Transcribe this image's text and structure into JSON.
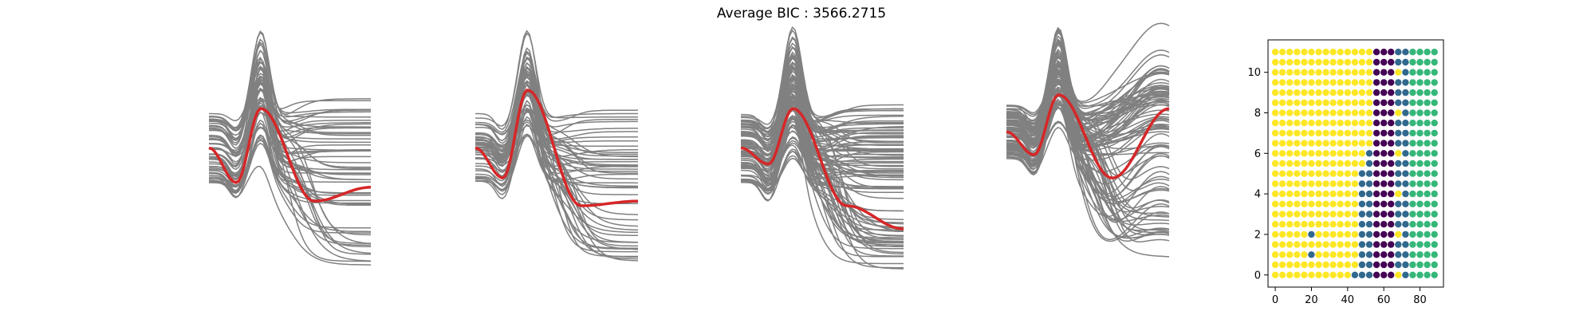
{
  "title": "Average BIC : 3566.2715",
  "colors": {
    "curve": "#808080",
    "mean": "#d62728",
    "cluster_colors": [
      "#440154",
      "#31688e",
      "#35b779",
      "#fde725"
    ]
  },
  "chart_data": [
    {
      "type": "line",
      "panel": 1,
      "axes_visible": false,
      "description_counts": {
        "gray_curves": 55
      },
      "series": [
        {
          "name": "",
          "role": "mean-curve",
          "values": [
            0.55,
            0.4,
            0.72,
            0.32,
            0.38
          ]
        }
      ]
    },
    {
      "type": "line",
      "panel": 2,
      "axes_visible": false,
      "description_counts": {
        "gray_curves": 50
      },
      "series": [
        {
          "name": "",
          "role": "mean-curve",
          "values": [
            0.55,
            0.42,
            0.8,
            0.3,
            0.32
          ]
        }
      ]
    },
    {
      "type": "line",
      "panel": 3,
      "axes_visible": false,
      "description_counts": {
        "gray_curves": 90
      },
      "series": [
        {
          "name": "",
          "role": "mean-curve",
          "values": [
            0.55,
            0.48,
            0.72,
            0.3,
            0.2
          ]
        }
      ]
    },
    {
      "type": "line",
      "panel": 4,
      "axes_visible": false,
      "description_counts": {
        "gray_curves": 90
      },
      "series": [
        {
          "name": "",
          "role": "mean-curve",
          "values": [
            0.62,
            0.52,
            0.78,
            0.42,
            0.72
          ]
        }
      ]
    },
    {
      "type": "scatter",
      "panel": 5,
      "x_ticks": [
        0,
        20,
        40,
        60,
        80
      ],
      "y_ticks": [
        0,
        2,
        4,
        6,
        8,
        10
      ],
      "xlim": [
        -4,
        93
      ],
      "ylim": [
        -0.6,
        11.6
      ],
      "x_step": 4,
      "y_values": [
        0,
        0.5,
        1,
        1.5,
        2,
        2.5,
        3,
        3.5,
        4,
        4.5,
        5,
        5.5,
        6,
        6.5,
        7,
        7.5,
        8,
        8.5,
        9,
        9.5,
        10,
        10.5,
        11
      ],
      "grid": false
    }
  ]
}
